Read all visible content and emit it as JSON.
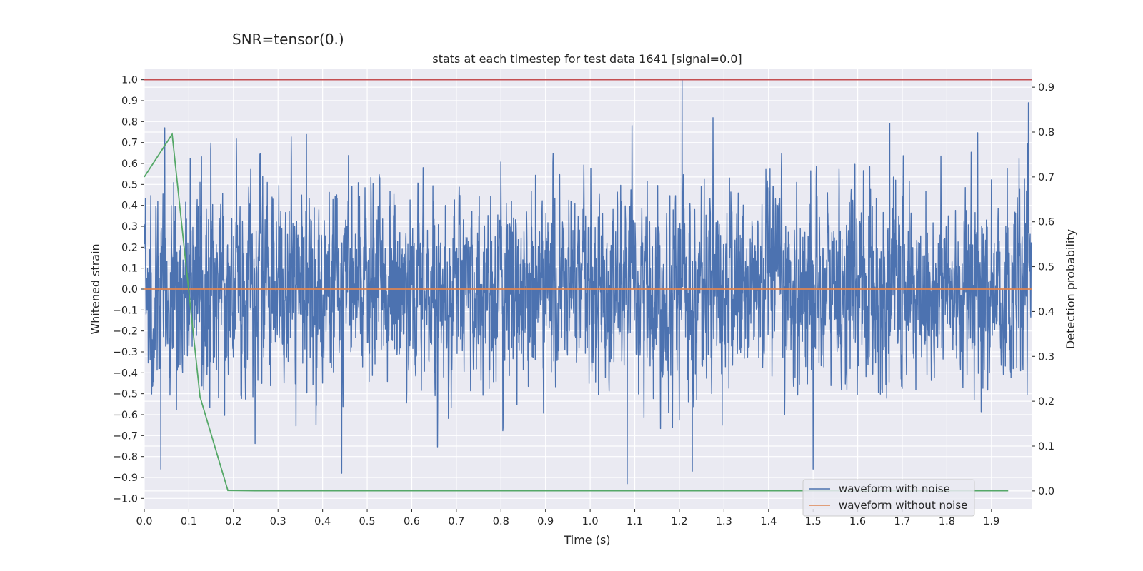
{
  "suptitle": "SNR=tensor(0.)",
  "chart_data": {
    "type": "line",
    "title": "stats at each timestep for test data 1641 [signal=0.0]",
    "xlabel": "Time (s)",
    "ylabel_left": "Whitened strain",
    "ylabel_right": "Detection probability",
    "xlim": [
      0.0,
      1.99
    ],
    "ylim_left": [
      -1.05,
      1.05
    ],
    "ylim_right": [
      -0.04,
      0.94
    ],
    "x_ticks": [
      "0.0",
      "0.1",
      "0.2",
      "0.3",
      "0.4",
      "0.5",
      "0.6",
      "0.7",
      "0.8",
      "0.9",
      "1.0",
      "1.1",
      "1.2",
      "1.3",
      "1.4",
      "1.5",
      "1.6",
      "1.7",
      "1.8",
      "1.9"
    ],
    "y_ticks_left": [
      "1.0",
      "0.9",
      "0.8",
      "0.7",
      "0.6",
      "0.5",
      "0.4",
      "0.3",
      "0.2",
      "0.1",
      "0.0",
      "−0.1",
      "−0.2",
      "−0.3",
      "−0.4",
      "−0.5",
      "−0.6",
      "−0.7",
      "−0.8",
      "−0.9",
      "−1.0"
    ],
    "y_ticks_right": [
      "0.9",
      "0.8",
      "0.7",
      "0.6",
      "0.5",
      "0.4",
      "0.3",
      "0.2",
      "0.1",
      "0.0"
    ],
    "grid": true,
    "legend_position": "lower-right",
    "series": [
      {
        "name": "waveform with noise",
        "axis": "left",
        "color": "#4c72b0",
        "sample_rate": 2048,
        "duration": 1.99,
        "amplitude_sd": 0.22,
        "peaks": [
          [
            0.046,
            0.77
          ],
          [
            0.037,
            -0.86
          ],
          [
            1.206,
            1.0
          ],
          [
            1.083,
            -0.93
          ],
          [
            1.5,
            -0.86
          ],
          [
            0.443,
            -0.88
          ],
          [
            1.672,
            0.79
          ],
          [
            1.229,
            -0.87
          ]
        ]
      },
      {
        "name": "waveform without noise",
        "axis": "left",
        "color": "#dd8452",
        "x": [
          0.0,
          1.99
        ],
        "y": [
          0.0,
          0.0
        ]
      },
      {
        "name": "",
        "axis": "right",
        "color": "#55a868",
        "x": [
          0.0,
          0.0625,
          0.125,
          0.1875,
          0.25,
          0.3125,
          0.375,
          0.4375,
          0.5,
          0.5625,
          0.625,
          0.6875,
          0.75,
          0.8125,
          0.875,
          0.9375,
          1.0,
          1.0625,
          1.125,
          1.1875,
          1.25,
          1.3125,
          1.375,
          1.4375,
          1.5,
          1.5625,
          1.625,
          1.6875,
          1.75,
          1.8125,
          1.875,
          1.9375
        ],
        "y": [
          0.7,
          0.795,
          0.21,
          0.001,
          0.0005,
          0.0005,
          0.0005,
          0.0005,
          0.0005,
          0.0005,
          0.0005,
          0.0005,
          0.0005,
          0.0005,
          0.0005,
          0.0005,
          0.0005,
          0.0005,
          0.0005,
          0.0005,
          0.0005,
          0.0005,
          0.0005,
          0.0005,
          0.0005,
          0.0005,
          0.0005,
          0.0005,
          0.0005,
          0.0005,
          0.0005,
          0.0005
        ]
      },
      {
        "name": "",
        "axis": "left",
        "color": "#c44e52",
        "x": [
          0.0,
          1.99
        ],
        "y": [
          1.0,
          1.0
        ]
      }
    ]
  }
}
